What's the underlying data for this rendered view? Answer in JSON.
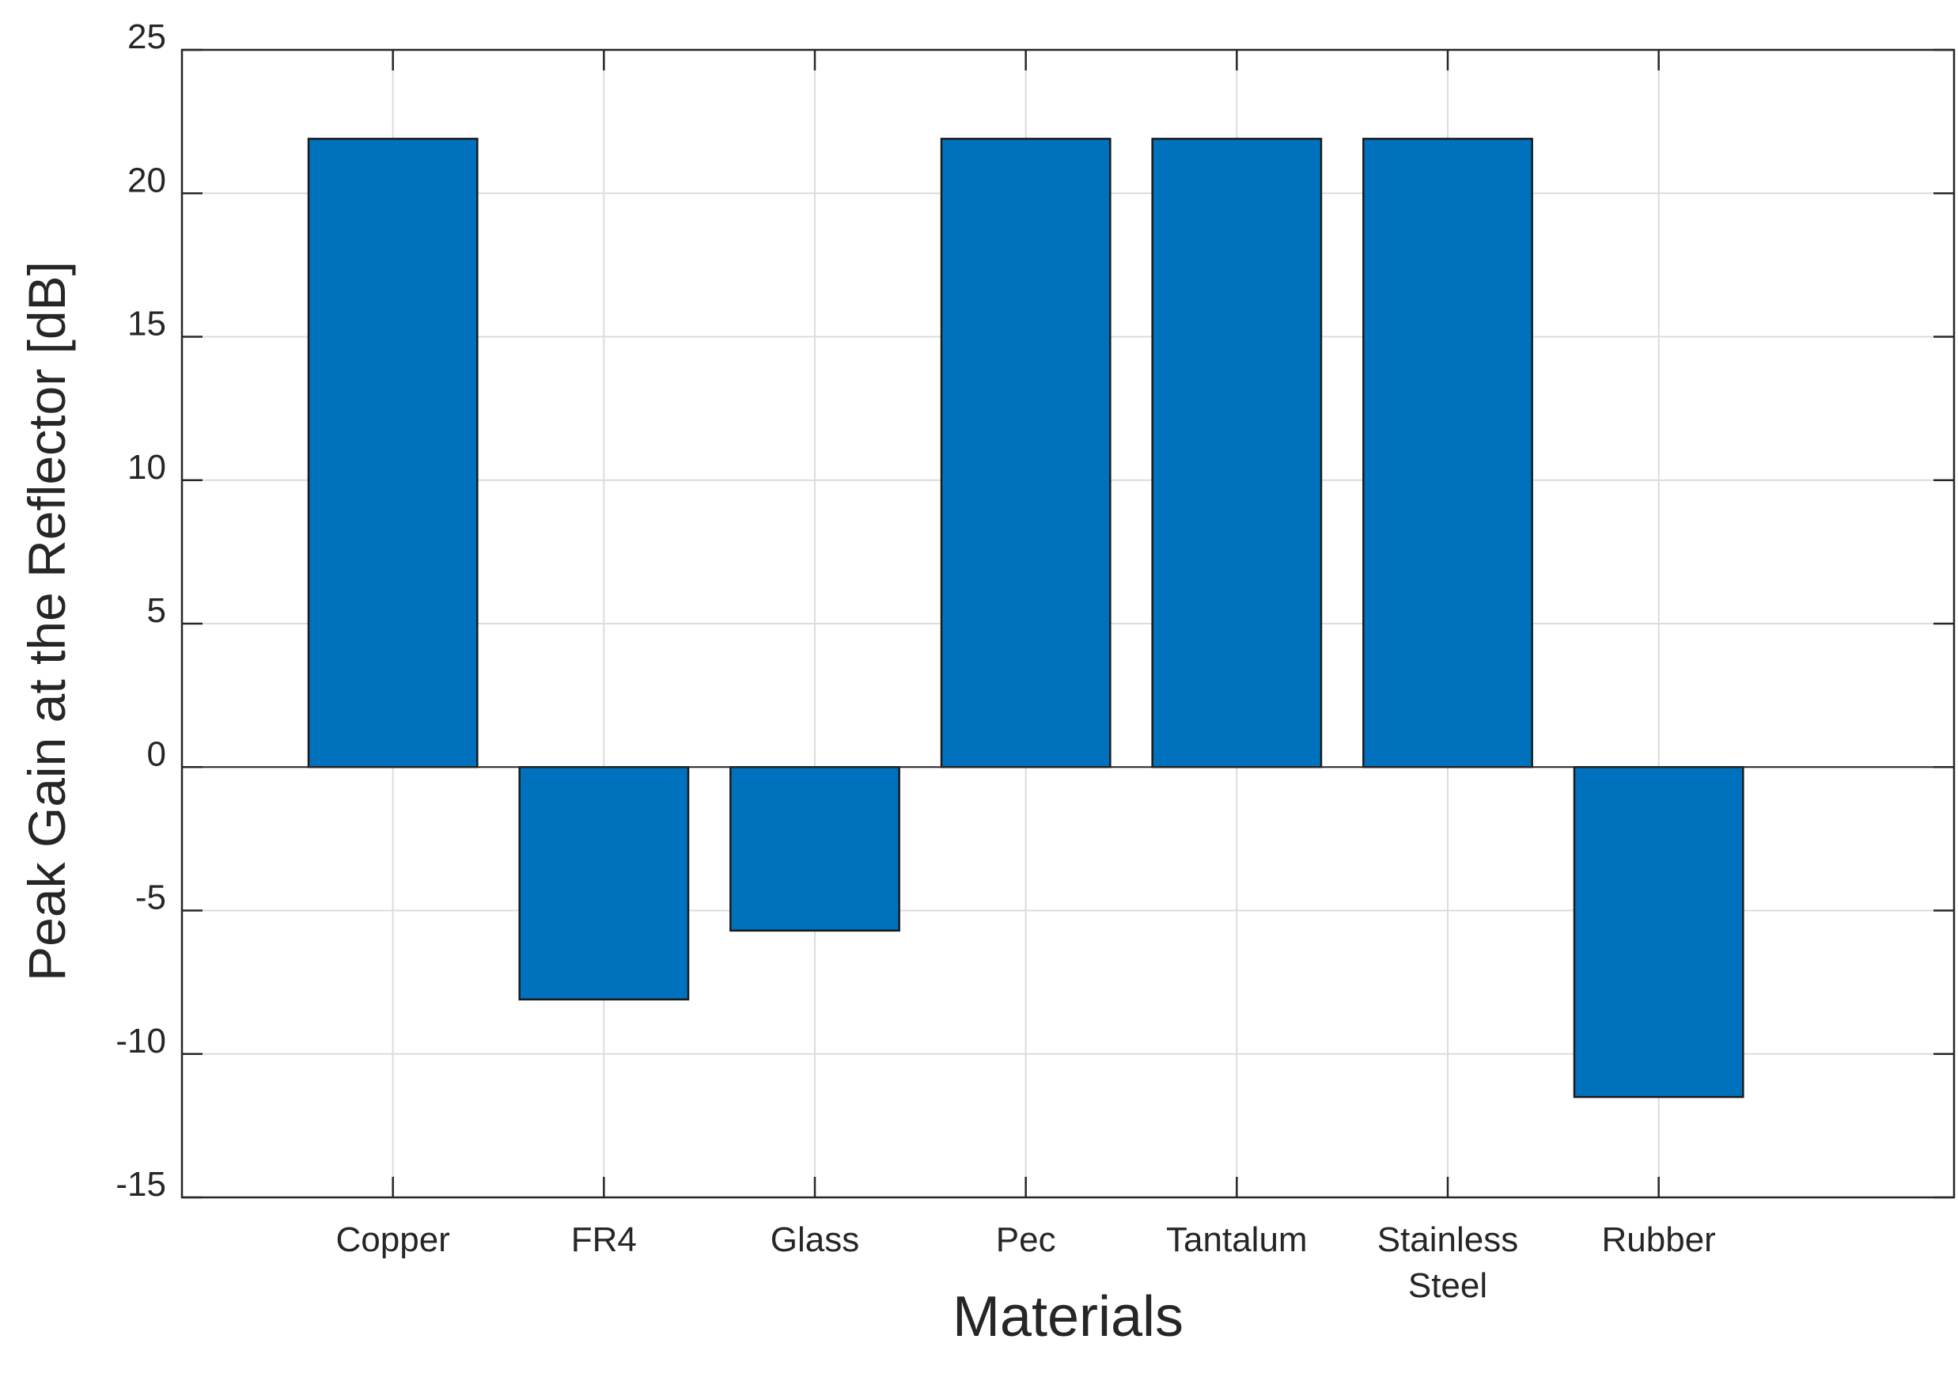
{
  "chart_data": {
    "type": "bar",
    "categories": [
      "Copper",
      "FR4",
      "Glass",
      "Pec",
      "Tantalum",
      "Stainless Steel",
      "Rubber"
    ],
    "category_lines": [
      [
        "Copper"
      ],
      [
        "FR4"
      ],
      [
        "Glass"
      ],
      [
        "Pec"
      ],
      [
        "Tantalum"
      ],
      [
        "Stainless",
        "Steel"
      ],
      [
        "Rubber"
      ]
    ],
    "values": [
      21.9,
      -8.1,
      -5.7,
      21.9,
      21.9,
      21.9,
      -11.5
    ],
    "xlabel": "Materials",
    "ylabel": "Peak Gain at the Reflector [dB]",
    "ylim": [
      -15,
      25
    ],
    "yticks": [
      -15,
      -10,
      -5,
      0,
      5,
      10,
      15,
      20,
      25
    ],
    "ytick_labels": [
      "-15",
      "-10",
      "-5",
      "0",
      "5",
      "10",
      "15",
      "20",
      "25"
    ],
    "grid": true,
    "bar_color": "#0072BD"
  }
}
